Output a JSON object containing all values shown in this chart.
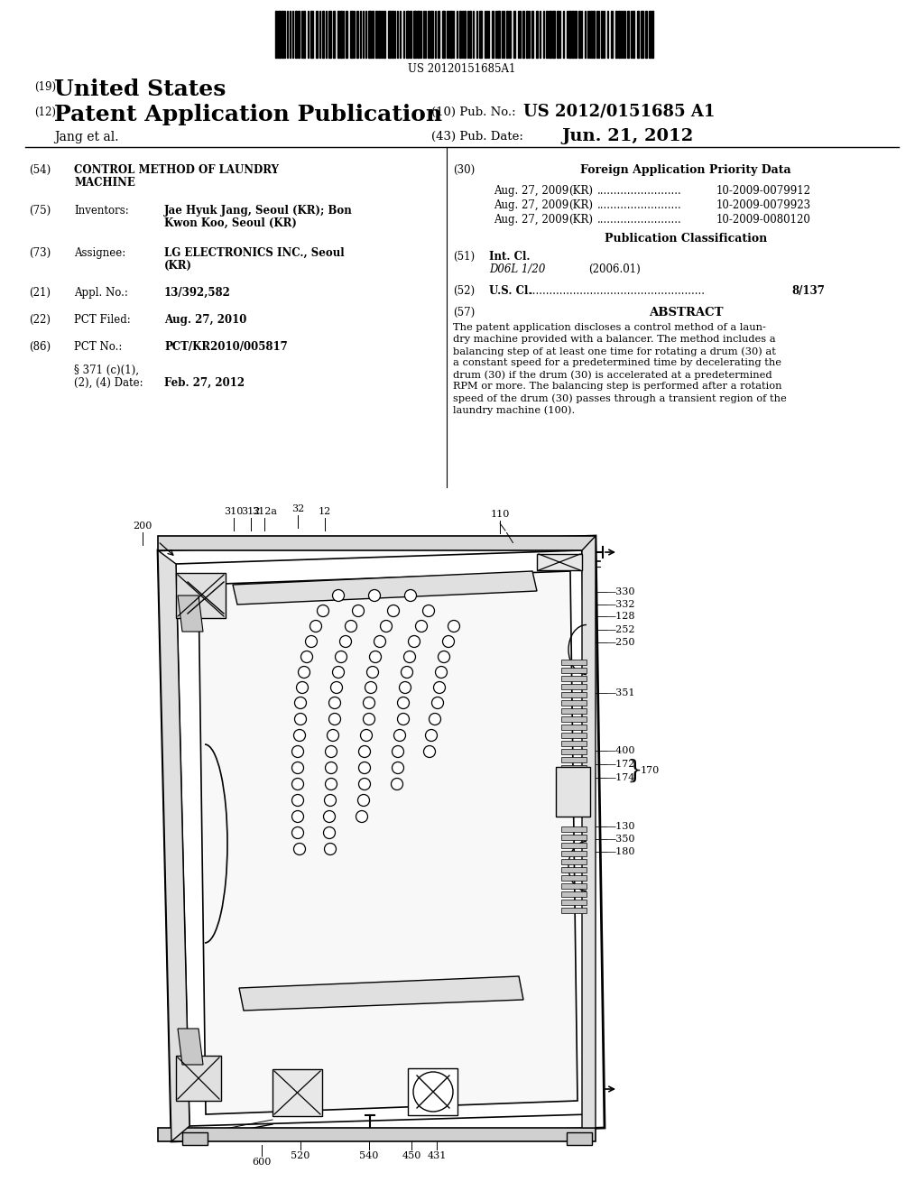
{
  "background_color": "#ffffff",
  "barcode_text": "US 20120151685A1",
  "doc_type_prefix": "(19)",
  "doc_type": "United States",
  "pub_type_prefix": "(12)",
  "pub_type": "Patent Application Publication",
  "pub_no_prefix": "(10) Pub. No.:",
  "pub_no": "US 2012/0151685 A1",
  "authors": "Jang et al.",
  "pub_date_prefix": "(43) Pub. Date:",
  "pub_date": "Jun. 21, 2012",
  "field54_label": "(54)",
  "field54_title_line1": "CONTROL METHOD OF LAUNDRY",
  "field54_title_line2": "MACHINE",
  "field75_label": "(75)",
  "field75_name": "Inventors:",
  "field75_value_line1": "Jae Hyuk Jang, Seoul (KR); Bon",
  "field75_value_line2": "Kwon Koo, Seoul (KR)",
  "field73_label": "(73)",
  "field73_name": "Assignee:",
  "field73_value_line1": "LG ELECTRONICS INC., Seoul",
  "field73_value_line2": "(KR)",
  "field21_label": "(21)",
  "field21_name": "Appl. No.:",
  "field21_value": "13/392,582",
  "field22_label": "(22)",
  "field22_name": "PCT Filed:",
  "field22_value": "Aug. 27, 2010",
  "field86_label": "(86)",
  "field86_name": "PCT No.:",
  "field86_value": "PCT/KR2010/005817",
  "field371_line1": "§ 371 (c)(1),",
  "field371_line2": "(2), (4) Date:",
  "field371_value": "Feb. 27, 2012",
  "field30_label": "(30)",
  "field30_title": "Foreign Application Priority Data",
  "priority_data": [
    {
      "date": "Aug. 27, 2009",
      "country": "(KR)",
      "number": "10-2009-0079912"
    },
    {
      "date": "Aug. 27, 2009",
      "country": "(KR)",
      "number": "10-2009-0079923"
    },
    {
      "date": "Aug. 27, 2009",
      "country": "(KR)",
      "number": "10-2009-0080120"
    }
  ],
  "pub_class_title": "Publication Classification",
  "field51_label": "(51)",
  "field51_name": "Int. Cl.",
  "field51_class": "D06L 1/20",
  "field51_year": "(2006.01)",
  "field52_label": "(52)",
  "field52_name": "U.S. Cl.",
  "field52_value": "8/137",
  "field57_label": "(57)",
  "field57_title": "ABSTRACT",
  "abstract_lines": [
    "The patent application discloses a control method of a laun-",
    "dry machine provided with a balancer. The method includes a",
    "balancing step of at least one time for rotating a drum (30) at",
    "a constant speed for a predetermined time by decelerating the",
    "drum (30) if the drum (30) is accelerated at a predetermined",
    "RPM or more. The balancing step is performed after a rotation",
    "speed of the drum (30) passes through a transient region of the",
    "laundry machine (100)."
  ]
}
